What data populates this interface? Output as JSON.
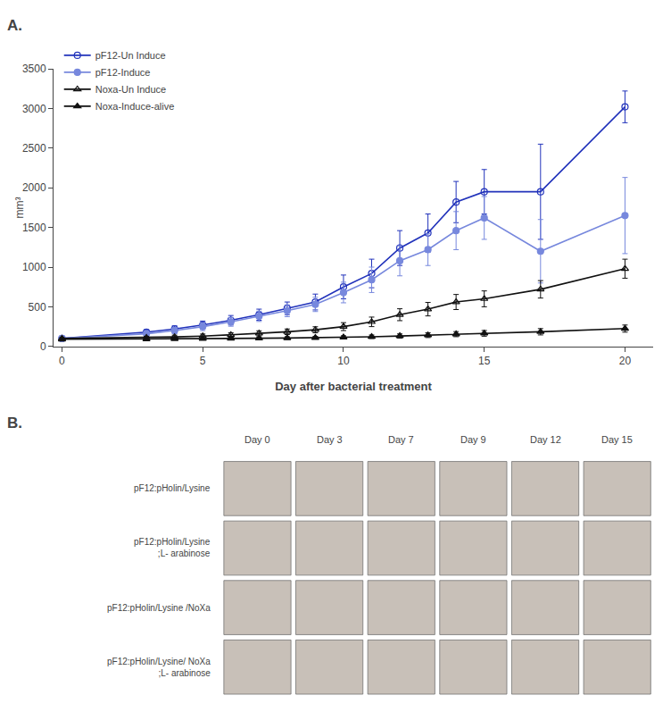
{
  "chart_data": [
    {
      "type": "line",
      "title": "A.",
      "xlabel": "Day after bacterial treatment",
      "ylabel": "mm³",
      "xlim": [
        -0.3,
        21
      ],
      "ylim": [
        0,
        3500
      ],
      "xticks": [
        0,
        5,
        10,
        15,
        20
      ],
      "yticks": [
        0,
        500,
        1000,
        1500,
        2000,
        2500,
        3000,
        3500
      ],
      "grid": false,
      "legend": "upper left",
      "series": [
        {
          "name": "pF12-Un Induce",
          "color": "#2233BB",
          "marker": "circle-open",
          "x": [
            0,
            3,
            4,
            5,
            6,
            7,
            8,
            9,
            10,
            11,
            12,
            13,
            14,
            15,
            17,
            20
          ],
          "values": [
            100,
            180,
            220,
            270,
            330,
            400,
            480,
            560,
            750,
            920,
            1240,
            1430,
            1820,
            1950,
            1950,
            3020
          ],
          "yerr": [
            15,
            30,
            40,
            50,
            60,
            70,
            80,
            100,
            150,
            180,
            220,
            240,
            260,
            280,
            600,
            200
          ]
        },
        {
          "name": "pF12-Induce",
          "color": "#7788DD",
          "marker": "circle",
          "x": [
            0,
            3,
            4,
            5,
            6,
            7,
            8,
            9,
            10,
            11,
            12,
            13,
            14,
            15,
            17,
            20
          ],
          "values": [
            100,
            160,
            200,
            250,
            310,
            380,
            450,
            530,
            680,
            840,
            1080,
            1220,
            1460,
            1620,
            1200,
            1650
          ],
          "yerr": [
            15,
            30,
            40,
            50,
            55,
            65,
            75,
            90,
            130,
            160,
            190,
            200,
            240,
            270,
            400,
            480
          ]
        },
        {
          "name": "Noxa-Un Induce",
          "color": "#111111",
          "marker": "triangle-up-open",
          "x": [
            0,
            3,
            4,
            5,
            6,
            7,
            8,
            9,
            10,
            11,
            12,
            13,
            14,
            15,
            17,
            20
          ],
          "values": [
            100,
            110,
            120,
            130,
            145,
            165,
            185,
            210,
            250,
            310,
            400,
            470,
            560,
            600,
            720,
            980
          ],
          "yerr": [
            12,
            18,
            22,
            26,
            28,
            32,
            35,
            38,
            50,
            60,
            75,
            85,
            95,
            100,
            110,
            120
          ]
        },
        {
          "name": "Noxa-Induce-alive",
          "color": "#111111",
          "marker": "triangle-up",
          "x": [
            0,
            3,
            4,
            5,
            6,
            7,
            8,
            9,
            10,
            11,
            12,
            13,
            14,
            15,
            17,
            20
          ],
          "values": [
            90,
            92,
            95,
            98,
            100,
            103,
            106,
            110,
            115,
            122,
            132,
            142,
            155,
            165,
            185,
            225
          ],
          "yerr": [
            8,
            10,
            12,
            13,
            14,
            15,
            16,
            17,
            19,
            22,
            26,
            30,
            32,
            36,
            40,
            45
          ]
        }
      ]
    },
    {
      "type": "image_grid",
      "title": "B.",
      "x": [
        "Day 0",
        "Day 3",
        "Day 7",
        "Day 9",
        "Day 12",
        "Day 15"
      ],
      "y": [
        "pF12:pHolin/Lysine",
        "pF12:pHolin/Lysine\n;L- arabinose",
        "pF12:pHolin/Lysine /NoXa",
        "pF12:pHolin/Lysine/ NoXa\n;L- arabinose"
      ],
      "color": "#c8c0b8"
    }
  ]
}
